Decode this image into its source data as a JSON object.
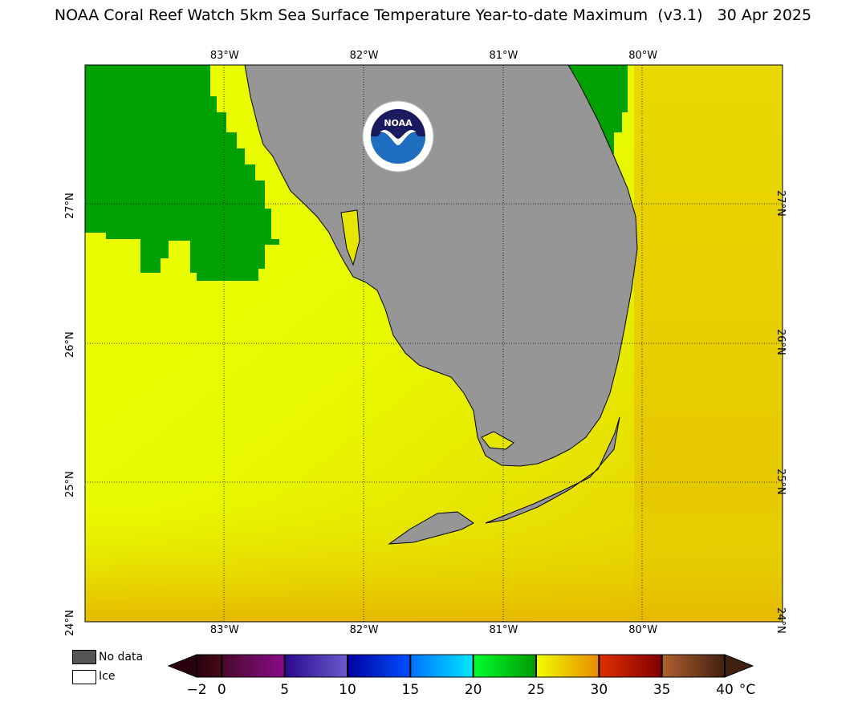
{
  "title": "NOAA Coral Reef Watch 5km Sea Surface Temperature Year-to-date Maximum  (v3.1)   30 Apr 2025",
  "map": {
    "lon_range": [
      -84.0,
      -79.0
    ],
    "lat_range": [
      24.0,
      28.0
    ],
    "lon_ticks": [
      {
        "value": -83,
        "label": "83°W"
      },
      {
        "value": -82,
        "label": "82°W"
      },
      {
        "value": -81,
        "label": "81°W"
      },
      {
        "value": -80,
        "label": "80°W"
      }
    ],
    "lat_ticks": [
      {
        "value": 27,
        "label": "27°N"
      },
      {
        "value": 26,
        "label": "26°N"
      },
      {
        "value": 25,
        "label": "25°N"
      },
      {
        "value": 24,
        "label": "24°N"
      }
    ],
    "grid": "dotted",
    "land_color": "#969696"
  },
  "logo": {
    "text": "NOAA",
    "icon": "noaa-logo-icon"
  },
  "legend": {
    "no_data_label": "No data",
    "no_data_color": "#555555",
    "ice_label": "Ice",
    "ice_color": "#ffffff"
  },
  "colorbar": {
    "unit": "°C",
    "min": -2,
    "max": 40,
    "tick_labels": [
      "−2",
      "0",
      "5",
      "10",
      "15",
      "20",
      "25",
      "30",
      "35",
      "40"
    ],
    "tick_values": [
      -2,
      0,
      5,
      10,
      15,
      20,
      25,
      30,
      35,
      40
    ],
    "segments": [
      {
        "from": -2,
        "to": 0,
        "colors": [
          "#2a0010",
          "#4a0a1a"
        ]
      },
      {
        "from": 0,
        "to": 5,
        "colors": [
          "#4a0a2a",
          "#8a0a8a"
        ]
      },
      {
        "from": 5,
        "to": 10,
        "colors": [
          "#2a0a8a",
          "#6a5acd"
        ]
      },
      {
        "from": 10,
        "to": 15,
        "colors": [
          "#0000a0",
          "#0050ff"
        ]
      },
      {
        "from": 15,
        "to": 20,
        "colors": [
          "#0070ff",
          "#00e8ff"
        ]
      },
      {
        "from": 20,
        "to": 25,
        "colors": [
          "#00ff30",
          "#009a00"
        ]
      },
      {
        "from": 25,
        "to": 30,
        "colors": [
          "#f0ff00",
          "#e88a00"
        ]
      },
      {
        "from": 30,
        "to": 35,
        "colors": [
          "#e03000",
          "#800000"
        ]
      },
      {
        "from": 35,
        "to": 40,
        "colors": [
          "#b06030",
          "#402010"
        ]
      }
    ]
  },
  "colors": {
    "sst_green": "#00a000",
    "sst_yellow": "#e6ff00",
    "sst_gold": "#e6c200",
    "coast": "#000000"
  }
}
